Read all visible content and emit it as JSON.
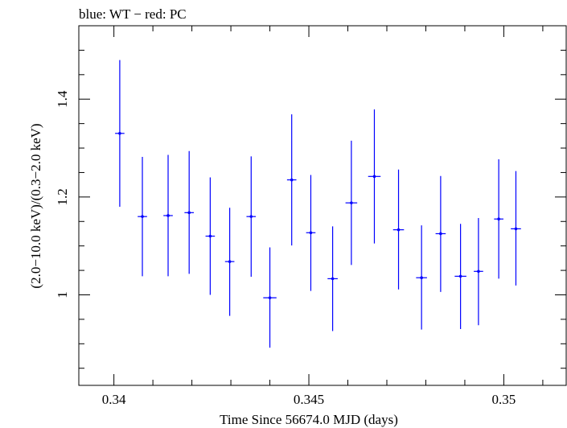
{
  "chart_data": {
    "type": "scatter",
    "title": "blue: WT − red: PC",
    "xlabel": "Time Since 56674.0 MJD (days)",
    "ylabel": "(2.0−10.0 keV)/(0.3−2.0 keV)",
    "xlim": [
      0.3391,
      0.3516
    ],
    "ylim": [
      0.815,
      1.55
    ],
    "x_ticks": [
      0.34,
      0.345,
      0.35
    ],
    "x_tick_labels": [
      "0.34",
      "0.345",
      "0.35"
    ],
    "y_ticks": [
      1.0,
      1.2,
      1.4
    ],
    "y_tick_labels": [
      "1",
      "1.2",
      "1.4"
    ],
    "grid": false,
    "legend": "none",
    "series": [
      {
        "color": "#0000ff",
        "points": [
          {
            "x": 0.34015,
            "xerr": 0.00012,
            "y": 1.33,
            "ylo": 1.18,
            "yhi": 1.48
          },
          {
            "x": 0.34073,
            "xerr": 0.00012,
            "y": 1.16,
            "ylo": 1.038,
            "yhi": 1.282
          },
          {
            "x": 0.34139,
            "xerr": 0.00012,
            "y": 1.162,
            "ylo": 1.038,
            "yhi": 1.286
          },
          {
            "x": 0.34193,
            "xerr": 0.00012,
            "y": 1.168,
            "ylo": 1.043,
            "yhi": 1.294
          },
          {
            "x": 0.34247,
            "xerr": 0.00012,
            "y": 1.12,
            "ylo": 1.0,
            "yhi": 1.24
          },
          {
            "x": 0.34297,
            "xerr": 0.00012,
            "y": 1.068,
            "ylo": 0.957,
            "yhi": 1.178
          },
          {
            "x": 0.34352,
            "xerr": 0.00012,
            "y": 1.16,
            "ylo": 1.037,
            "yhi": 1.283
          },
          {
            "x": 0.344,
            "xerr": 0.00017,
            "y": 0.994,
            "ylo": 0.892,
            "yhi": 1.097
          },
          {
            "x": 0.34456,
            "xerr": 0.00012,
            "y": 1.235,
            "ylo": 1.101,
            "yhi": 1.369
          },
          {
            "x": 0.34505,
            "xerr": 0.00012,
            "y": 1.127,
            "ylo": 1.008,
            "yhi": 1.245
          },
          {
            "x": 0.34561,
            "xerr": 0.00013,
            "y": 1.033,
            "ylo": 0.926,
            "yhi": 1.14
          },
          {
            "x": 0.34609,
            "xerr": 0.00015,
            "y": 1.188,
            "ylo": 1.061,
            "yhi": 1.315
          },
          {
            "x": 0.34668,
            "xerr": 0.00016,
            "y": 1.242,
            "ylo": 1.105,
            "yhi": 1.379
          },
          {
            "x": 0.3473,
            "xerr": 0.00014,
            "y": 1.133,
            "ylo": 1.011,
            "yhi": 1.256
          },
          {
            "x": 0.34789,
            "xerr": 0.00014,
            "y": 1.035,
            "ylo": 0.929,
            "yhi": 1.142
          },
          {
            "x": 0.34838,
            "xerr": 0.00013,
            "y": 1.125,
            "ylo": 1.006,
            "yhi": 1.243
          },
          {
            "x": 0.34889,
            "xerr": 0.00015,
            "y": 1.038,
            "ylo": 0.93,
            "yhi": 1.145
          },
          {
            "x": 0.34935,
            "xerr": 0.00012,
            "y": 1.048,
            "ylo": 0.938,
            "yhi": 1.157
          },
          {
            "x": 0.34987,
            "xerr": 0.00012,
            "y": 1.155,
            "ylo": 1.033,
            "yhi": 1.277
          },
          {
            "x": 0.35031,
            "xerr": 0.00013,
            "y": 1.135,
            "ylo": 1.019,
            "yhi": 1.253
          }
        ]
      }
    ]
  }
}
